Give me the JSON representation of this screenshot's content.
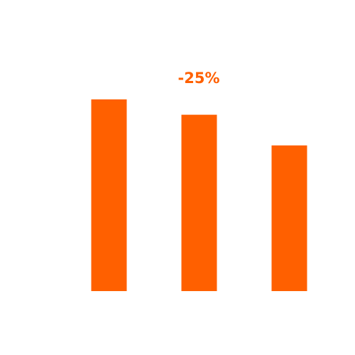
{
  "chart_data": {
    "type": "bar",
    "annotation": "-25%",
    "categories": [
      null,
      null,
      null
    ],
    "values": [
      100,
      92,
      76
    ],
    "color": "#ff6000",
    "ylim": [
      0,
      100
    ]
  }
}
